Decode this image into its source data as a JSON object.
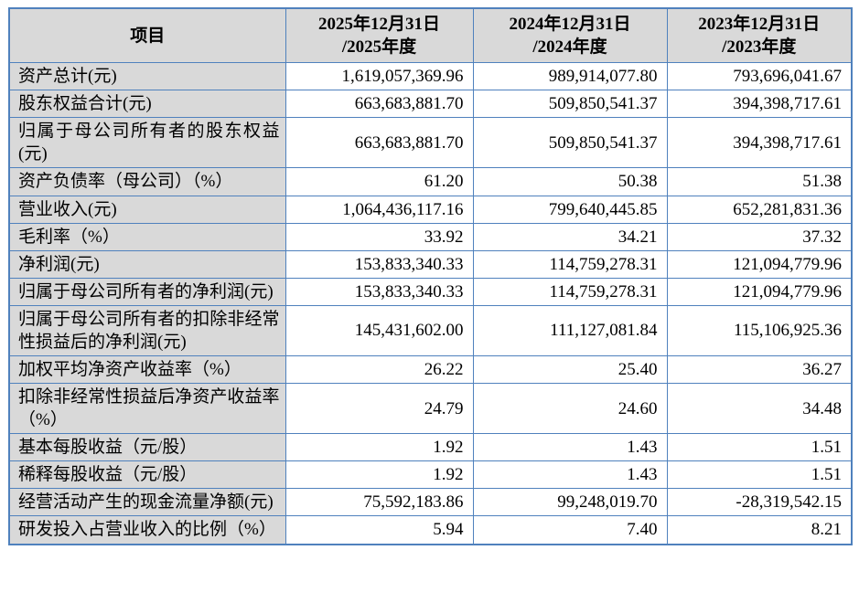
{
  "table": {
    "header": {
      "item_label": "项目",
      "periods": [
        {
          "line1": "2025年12月31日",
          "line2": "/2025年度"
        },
        {
          "line1": "2024年12月31日",
          "line2": "/2024年度"
        },
        {
          "line1": "2023年12月31日",
          "line2": "/2023年度"
        }
      ]
    },
    "rows": [
      {
        "label": "资产总计(元)",
        "values": [
          "1,619,057,369.96",
          "989,914,077.80",
          "793,696,041.67"
        ]
      },
      {
        "label": "股东权益合计(元)",
        "values": [
          "663,683,881.70",
          "509,850,541.37",
          "394,398,717.61"
        ]
      },
      {
        "label": "归属于母公司所有者的股东权益(元)",
        "values": [
          "663,683,881.70",
          "509,850,541.37",
          "394,398,717.61"
        ]
      },
      {
        "label": "资产负债率（母公司）（%）",
        "values": [
          "61.20",
          "50.38",
          "51.38"
        ]
      },
      {
        "label": "营业收入(元)",
        "values": [
          "1,064,436,117.16",
          "799,640,445.85",
          "652,281,831.36"
        ]
      },
      {
        "label": "毛利率（%）",
        "values": [
          "33.92",
          "34.21",
          "37.32"
        ]
      },
      {
        "label": "净利润(元)",
        "values": [
          "153,833,340.33",
          "114,759,278.31",
          "121,094,779.96"
        ]
      },
      {
        "label": "归属于母公司所有者的净利润(元)",
        "values": [
          "153,833,340.33",
          "114,759,278.31",
          "121,094,779.96"
        ]
      },
      {
        "label": "归属于母公司所有者的扣除非经常性损益后的净利润(元)",
        "values": [
          "145,431,602.00",
          "111,127,081.84",
          "115,106,925.36"
        ]
      },
      {
        "label": "加权平均净资产收益率（%）",
        "values": [
          "26.22",
          "25.40",
          "36.27"
        ]
      },
      {
        "label": "扣除非经常性损益后净资产收益率（%）",
        "values": [
          "24.79",
          "24.60",
          "34.48"
        ]
      },
      {
        "label": "基本每股收益（元/股）",
        "values": [
          "1.92",
          "1.43",
          "1.51"
        ]
      },
      {
        "label": "稀释每股收益（元/股）",
        "values": [
          "1.92",
          "1.43",
          "1.51"
        ]
      },
      {
        "label": "经营活动产生的现金流量净额(元)",
        "values": [
          "75,592,183.86",
          "99,248,019.70",
          "-28,319,542.15"
        ]
      },
      {
        "label": "研发投入占营业收入的比例（%）",
        "values": [
          "5.94",
          "7.40",
          "8.21"
        ]
      }
    ]
  },
  "colors": {
    "border": "#4f81bd",
    "header_bg": "#d9d9d9",
    "label_bg": "#d9d9d9",
    "text": "#000000",
    "page_bg": "#ffffff"
  }
}
